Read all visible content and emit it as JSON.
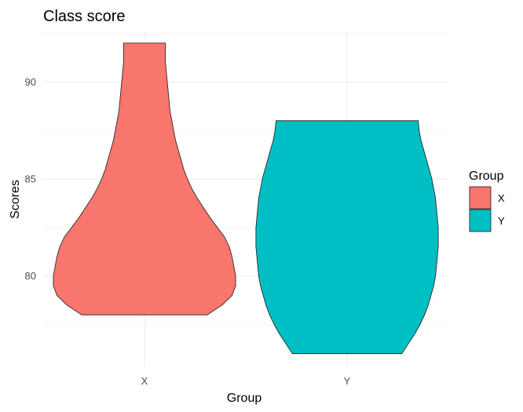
{
  "chart_data": {
    "type": "violin",
    "title": "Class score",
    "xlabel": "Group",
    "ylabel": "Scores",
    "categories": [
      "X",
      "Y"
    ],
    "ylim": [
      75.3,
      92.6
    ],
    "yticks": [
      80,
      85,
      90
    ],
    "grid": true,
    "legend": {
      "title": "Group",
      "position": "right",
      "entries": [
        {
          "label": "X",
          "color": "#F8766D"
        },
        {
          "label": "Y",
          "color": "#00BFC4"
        }
      ]
    },
    "series": [
      {
        "name": "X",
        "color": "#F8766D",
        "profile": [
          [
            78.0,
            0.69
          ],
          [
            78.5,
            0.85
          ],
          [
            79.0,
            0.96
          ],
          [
            79.5,
            1.0
          ],
          [
            80.0,
            1.0
          ],
          [
            80.5,
            0.98
          ],
          [
            81.0,
            0.96
          ],
          [
            81.5,
            0.93
          ],
          [
            82.0,
            0.88
          ],
          [
            82.5,
            0.8
          ],
          [
            83.0,
            0.72
          ],
          [
            83.5,
            0.65
          ],
          [
            84.0,
            0.58
          ],
          [
            84.5,
            0.52
          ],
          [
            85.0,
            0.47
          ],
          [
            85.5,
            0.43
          ],
          [
            86.0,
            0.4
          ],
          [
            86.5,
            0.37
          ],
          [
            87.0,
            0.34
          ],
          [
            87.5,
            0.32
          ],
          [
            88.0,
            0.3
          ],
          [
            88.5,
            0.28
          ],
          [
            89.0,
            0.27
          ],
          [
            89.5,
            0.26
          ],
          [
            90.0,
            0.25
          ],
          [
            90.5,
            0.24
          ],
          [
            91.0,
            0.23
          ],
          [
            91.5,
            0.23
          ],
          [
            92.0,
            0.23
          ]
        ]
      },
      {
        "name": "Y",
        "color": "#00BFC4",
        "profile": [
          [
            76.0,
            0.6
          ],
          [
            76.5,
            0.67
          ],
          [
            77.0,
            0.74
          ],
          [
            77.5,
            0.8
          ],
          [
            78.0,
            0.85
          ],
          [
            78.5,
            0.89
          ],
          [
            79.0,
            0.92
          ],
          [
            79.5,
            0.95
          ],
          [
            80.0,
            0.97
          ],
          [
            80.5,
            0.98
          ],
          [
            81.0,
            0.99
          ],
          [
            81.5,
            1.0
          ],
          [
            82.0,
            1.0
          ],
          [
            82.5,
            1.0
          ],
          [
            83.0,
            0.99
          ],
          [
            83.5,
            0.98
          ],
          [
            84.0,
            0.97
          ],
          [
            84.5,
            0.95
          ],
          [
            85.0,
            0.93
          ],
          [
            85.5,
            0.9
          ],
          [
            86.0,
            0.87
          ],
          [
            86.5,
            0.84
          ],
          [
            87.0,
            0.81
          ],
          [
            87.5,
            0.79
          ],
          [
            88.0,
            0.78
          ]
        ]
      }
    ]
  }
}
